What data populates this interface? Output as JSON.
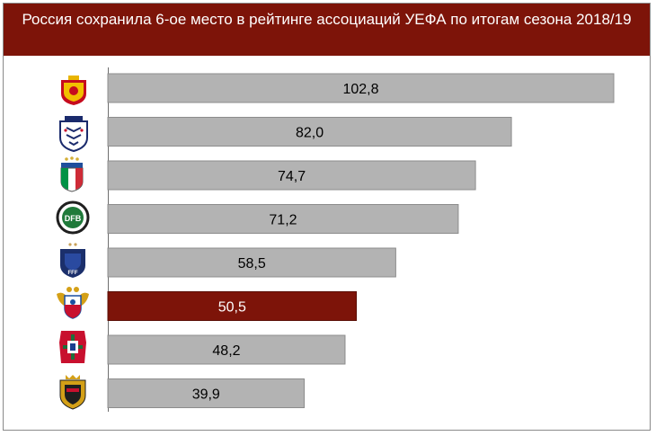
{
  "chart_data": {
    "type": "bar",
    "orientation": "horizontal",
    "title": "Россия сохранила 6-ое место в рейтинге ассоциаций УЕФА по итогам сезона 2018/19",
    "categories": [
      "spain-federation",
      "england-fa",
      "italy-figc",
      "germany-dfb",
      "france-fff",
      "russia-rfs",
      "portugal-fpf",
      "belgium-rbfa"
    ],
    "values": [
      102.8,
      82.0,
      74.7,
      71.2,
      58.5,
      50.5,
      48.2,
      39.9
    ],
    "value_labels": [
      "102,8",
      "82,0",
      "74,7",
      "71,2",
      "58,5",
      "50,5",
      "48,2",
      "39,9"
    ],
    "highlight_index": 5,
    "xlim": [
      0,
      102.8
    ],
    "grid": false,
    "legend": "none",
    "colors": {
      "bar": "#b3b3b3",
      "highlight": "#7d1409",
      "title_bg": "#7d1409"
    }
  }
}
